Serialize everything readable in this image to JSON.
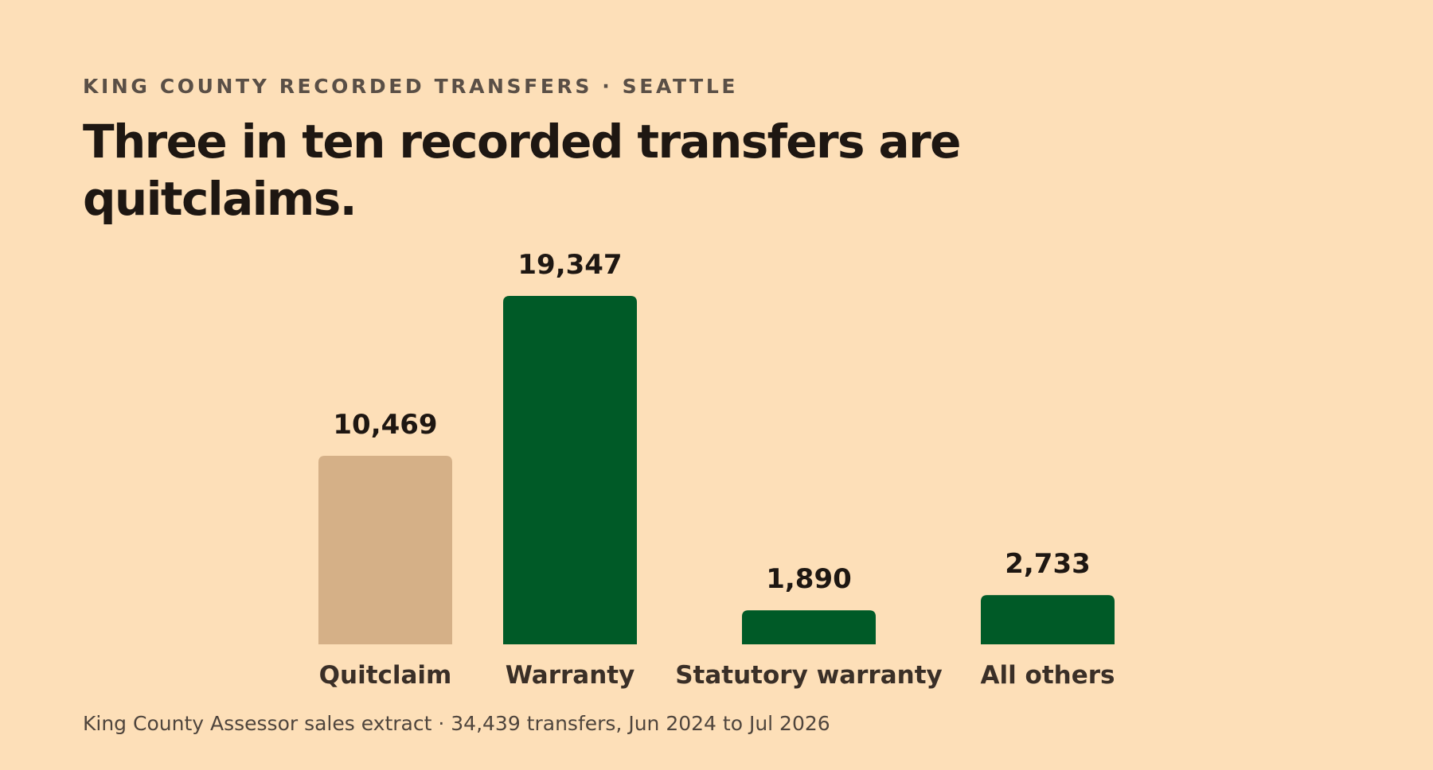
{
  "eyebrow": "KING COUNTY RECORDED TRANSFERS · SEATTLE",
  "title": "Three in ten recorded transfers are quitclaims.",
  "source": "King County Assessor sales extract · 34,439 transfers, Jun 2024 to Jul 2026",
  "colors": {
    "background": "#fddfb8",
    "highlight": "#d5b087",
    "base": "#005a27"
  },
  "chart_data": {
    "type": "bar",
    "title": "Three in ten recorded transfers are quitclaims.",
    "xlabel": "",
    "ylabel": "",
    "categories": [
      "Quitclaim",
      "Warranty",
      "Statutory warranty",
      "All others"
    ],
    "values": [
      10469,
      19347,
      1890,
      2733
    ],
    "value_labels": [
      "10,469",
      "19,347",
      "1,890",
      "2,733"
    ],
    "highlighted": [
      true,
      false,
      false,
      false
    ],
    "ylim": [
      0,
      19347
    ],
    "grid": false,
    "legend": "none"
  }
}
